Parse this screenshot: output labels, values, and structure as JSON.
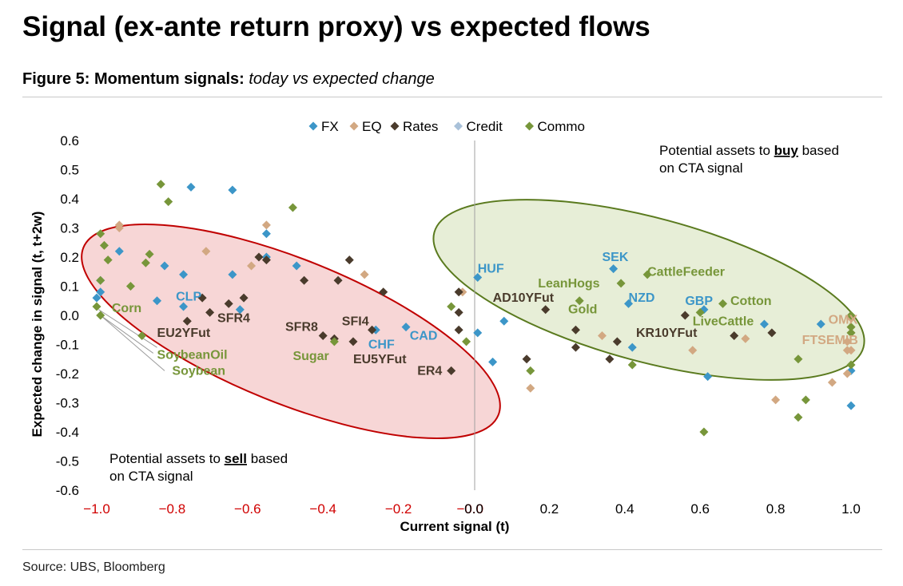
{
  "title": "Signal (ex-ante return proxy) vs expected flows",
  "figure_label": "Figure 5: Momentum signals:",
  "figure_desc": "today vs expected change",
  "source": "Source: UBS, Bloomberg",
  "colors": {
    "FX": "#3c96c8",
    "EQ": "#d2a882",
    "Rates": "#4a3b2c",
    "Credit": "#a9c1d9",
    "Commo": "#77963a",
    "neg_tick": "#d00000"
  },
  "annotations": {
    "buy_line1_a": "Potential assets to ",
    "buy_word": "buy",
    "buy_line1_b": " based",
    "buy_line2": "on CTA signal",
    "sell_line1_a": "Potential assets to ",
    "sell_word": "sell",
    "sell_line1_b": " based",
    "sell_line2": "on CTA signal"
  },
  "chart_data": {
    "type": "scatter",
    "xlabel": "Current signal (t)",
    "ylabel": "Expected change in signal (t, t+2w)",
    "xlim": [
      -1.0,
      1.0
    ],
    "ylim": [
      -0.6,
      0.6
    ],
    "xticks": [
      "−1.0",
      "−0.8",
      "−0.6",
      "−0.4",
      "−0.2",
      "−0.0",
      "0.0",
      "0.2",
      "0.4",
      "0.6",
      "0.8",
      "1.0"
    ],
    "xtick_values": [
      -1.0,
      -0.8,
      -0.6,
      -0.4,
      -0.2,
      -0.01,
      0.0,
      0.2,
      0.4,
      0.6,
      0.8,
      1.0
    ],
    "yticks": [
      "0.6",
      "0.5",
      "0.4",
      "0.3",
      "0.2",
      "0.1",
      "0.0",
      "-0.1",
      "-0.2",
      "-0.3",
      "-0.4",
      "-0.5",
      "-0.6"
    ],
    "ytick_values": [
      0.6,
      0.5,
      0.4,
      0.3,
      0.2,
      0.1,
      0.0,
      -0.1,
      -0.2,
      -0.3,
      -0.4,
      -0.5,
      -0.6
    ],
    "legend": [
      "FX",
      "EQ",
      "Rates",
      "Credit",
      "Commo"
    ],
    "legend_position": "top-center",
    "series": [
      {
        "name": "FX",
        "points": [
          [
            -0.99,
            0.12
          ],
          [
            -0.99,
            0.08
          ],
          [
            -1.0,
            0.06
          ],
          [
            -0.94,
            0.22
          ],
          [
            -0.75,
            0.44
          ],
          [
            -0.64,
            0.43
          ],
          [
            -0.55,
            0.28
          ],
          [
            -0.55,
            0.2
          ],
          [
            -0.47,
            0.17
          ],
          [
            -0.82,
            0.17
          ],
          [
            -0.77,
            0.14
          ],
          [
            -0.64,
            0.14
          ],
          [
            -0.84,
            0.05
          ],
          [
            -0.77,
            0.03
          ],
          [
            -0.62,
            0.02
          ],
          [
            -0.26,
            -0.05
          ],
          [
            -0.18,
            -0.04
          ],
          [
            0.01,
            0.13
          ],
          [
            0.01,
            -0.06
          ],
          [
            0.05,
            -0.16
          ],
          [
            0.08,
            -0.02
          ],
          [
            0.37,
            0.16
          ],
          [
            0.41,
            0.04
          ],
          [
            0.42,
            -0.11
          ],
          [
            0.61,
            0.02
          ],
          [
            0.62,
            -0.21
          ],
          [
            0.77,
            -0.03
          ],
          [
            0.92,
            -0.03
          ],
          [
            1.0,
            -0.19
          ],
          [
            1.0,
            -0.31
          ]
        ]
      },
      {
        "name": "EQ",
        "points": [
          [
            -0.94,
            0.31
          ],
          [
            -0.94,
            0.3
          ],
          [
            -0.71,
            0.22
          ],
          [
            -0.59,
            0.17
          ],
          [
            -0.55,
            0.31
          ],
          [
            -0.29,
            0.14
          ],
          [
            -0.03,
            0.08
          ],
          [
            0.15,
            -0.25
          ],
          [
            0.34,
            -0.07
          ],
          [
            0.58,
            -0.12
          ],
          [
            0.72,
            -0.08
          ],
          [
            0.8,
            -0.29
          ],
          [
            0.95,
            -0.23
          ],
          [
            0.99,
            -0.12
          ],
          [
            1.0,
            -0.12
          ],
          [
            0.99,
            -0.2
          ],
          [
            1.0,
            -0.04
          ],
          [
            1.0,
            -0.06
          ],
          [
            0.99,
            -0.09
          ],
          [
            1.0,
            -0.01
          ]
        ]
      },
      {
        "name": "Rates",
        "points": [
          [
            -0.72,
            0.06
          ],
          [
            -0.7,
            0.01
          ],
          [
            -0.76,
            -0.02
          ],
          [
            -0.65,
            0.04
          ],
          [
            -0.61,
            0.06
          ],
          [
            -0.57,
            0.2
          ],
          [
            -0.55,
            0.19
          ],
          [
            -0.45,
            0.12
          ],
          [
            -0.36,
            0.12
          ],
          [
            -0.33,
            0.19
          ],
          [
            -0.4,
            -0.07
          ],
          [
            -0.37,
            -0.08
          ],
          [
            -0.32,
            -0.09
          ],
          [
            -0.27,
            -0.05
          ],
          [
            -0.24,
            0.08
          ],
          [
            -0.06,
            -0.19
          ],
          [
            -0.04,
            0.08
          ],
          [
            -0.04,
            -0.05
          ],
          [
            -0.04,
            0.01
          ],
          [
            0.14,
            -0.15
          ],
          [
            0.19,
            0.02
          ],
          [
            0.27,
            -0.05
          ],
          [
            0.27,
            -0.11
          ],
          [
            0.36,
            -0.15
          ],
          [
            0.38,
            -0.09
          ],
          [
            0.56,
            0.0
          ],
          [
            0.69,
            -0.07
          ],
          [
            0.79,
            -0.06
          ]
        ]
      },
      {
        "name": "Credit",
        "points": []
      },
      {
        "name": "Commo",
        "points": [
          [
            -0.99,
            0.28
          ],
          [
            -0.98,
            0.24
          ],
          [
            -0.97,
            0.19
          ],
          [
            -0.99,
            0.12
          ],
          [
            -1.0,
            0.03
          ],
          [
            -0.99,
            0.0
          ],
          [
            -0.83,
            0.45
          ],
          [
            -0.81,
            0.39
          ],
          [
            -0.48,
            0.37
          ],
          [
            -0.86,
            0.21
          ],
          [
            -0.87,
            0.18
          ],
          [
            -0.91,
            0.1
          ],
          [
            -0.88,
            -0.07
          ],
          [
            -0.37,
            -0.09
          ],
          [
            -0.06,
            0.03
          ],
          [
            -0.02,
            -0.09
          ],
          [
            0.15,
            -0.19
          ],
          [
            0.28,
            0.05
          ],
          [
            0.39,
            0.11
          ],
          [
            0.46,
            0.14
          ],
          [
            0.42,
            -0.17
          ],
          [
            0.6,
            0.01
          ],
          [
            0.66,
            0.04
          ],
          [
            0.61,
            -0.4
          ],
          [
            0.86,
            -0.15
          ],
          [
            0.86,
            -0.35
          ],
          [
            0.88,
            -0.29
          ],
          [
            1.0,
            0.0
          ],
          [
            1.0,
            -0.04
          ],
          [
            1.0,
            -0.06
          ],
          [
            1.0,
            -0.17
          ]
        ]
      }
    ],
    "labels": [
      {
        "text": "CLP",
        "x": -0.79,
        "y": 0.065,
        "series": "FX",
        "anchor": "start"
      },
      {
        "text": "Corn",
        "x": -0.96,
        "y": 0.025,
        "series": "Commo",
        "anchor": "start"
      },
      {
        "text": "EU2YFut",
        "x": -0.84,
        "y": -0.06,
        "series": "Rates",
        "anchor": "start"
      },
      {
        "text": "SFR4",
        "x": -0.68,
        "y": -0.01,
        "series": "Rates",
        "anchor": "start"
      },
      {
        "text": "SFR8",
        "x": -0.5,
        "y": -0.04,
        "series": "Rates",
        "anchor": "start"
      },
      {
        "text": "SFI4",
        "x": -0.35,
        "y": -0.02,
        "series": "Rates",
        "anchor": "start"
      },
      {
        "text": "CHF",
        "x": -0.28,
        "y": -0.1,
        "series": "FX",
        "anchor": "start"
      },
      {
        "text": "CAD",
        "x": -0.17,
        "y": -0.07,
        "series": "FX",
        "anchor": "start"
      },
      {
        "text": "EU5YFut",
        "x": -0.32,
        "y": -0.15,
        "series": "Rates",
        "anchor": "start"
      },
      {
        "text": "Sugar",
        "x": -0.48,
        "y": -0.14,
        "series": "Commo",
        "anchor": "start"
      },
      {
        "text": "ER4",
        "x": -0.15,
        "y": -0.19,
        "series": "Rates",
        "anchor": "start"
      },
      {
        "text": "SoybeanOil",
        "x": -0.84,
        "y": -0.135,
        "series": "Commo",
        "anchor": "start"
      },
      {
        "text": "Soybean",
        "x": -0.8,
        "y": -0.19,
        "series": "Commo",
        "anchor": "start"
      },
      {
        "text": "HUF",
        "x": 0.01,
        "y": 0.16,
        "series": "FX",
        "anchor": "start"
      },
      {
        "text": "AD10YFut",
        "x": 0.05,
        "y": 0.06,
        "series": "Rates",
        "anchor": "start"
      },
      {
        "text": "LeanHogs",
        "x": 0.17,
        "y": 0.11,
        "series": "Commo",
        "anchor": "start"
      },
      {
        "text": "Gold",
        "x": 0.25,
        "y": 0.02,
        "series": "Commo",
        "anchor": "start"
      },
      {
        "text": "SEK",
        "x": 0.34,
        "y": 0.2,
        "series": "FX",
        "anchor": "start"
      },
      {
        "text": "CattleFeeder",
        "x": 0.46,
        "y": 0.15,
        "series": "Commo",
        "anchor": "start"
      },
      {
        "text": "NZD",
        "x": 0.41,
        "y": 0.06,
        "series": "FX",
        "anchor": "start"
      },
      {
        "text": "GBP",
        "x": 0.56,
        "y": 0.05,
        "series": "FX",
        "anchor": "start"
      },
      {
        "text": "Cotton",
        "x": 0.68,
        "y": 0.05,
        "series": "Commo",
        "anchor": "start"
      },
      {
        "text": "LiveCattle",
        "x": 0.58,
        "y": -0.02,
        "series": "Commo",
        "anchor": "start"
      },
      {
        "text": "KR10YFut",
        "x": 0.43,
        "y": -0.06,
        "series": "Rates",
        "anchor": "start"
      },
      {
        "text": "OMX",
        "x": 0.94,
        "y": -0.015,
        "series": "EQ",
        "anchor": "start"
      },
      {
        "text": "FTSEMIB",
        "x": 0.87,
        "y": -0.085,
        "series": "EQ",
        "anchor": "start"
      }
    ]
  }
}
